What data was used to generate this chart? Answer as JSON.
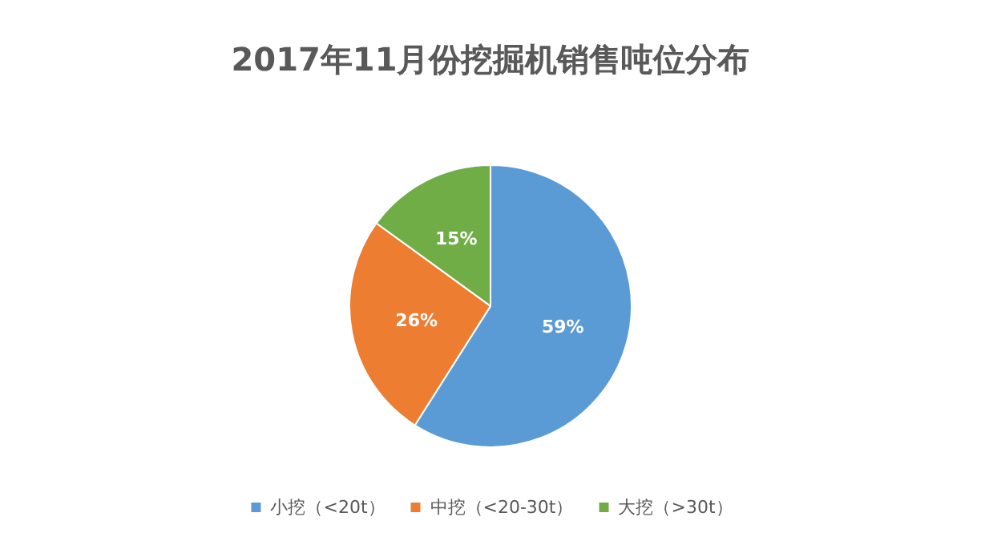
{
  "chart_data": {
    "type": "pie",
    "title": "2017年11月份挖掘机销售吨位分布",
    "categories": [
      "小挖（<20t）",
      "中挖（<20-30t）",
      "大挖（>30t）"
    ],
    "values": [
      59,
      26,
      15
    ],
    "value_labels": [
      "59%",
      "26%",
      "15%"
    ],
    "colors": [
      "#5b9bd5",
      "#ed7d31",
      "#70ad47"
    ],
    "legend": "bottom"
  }
}
